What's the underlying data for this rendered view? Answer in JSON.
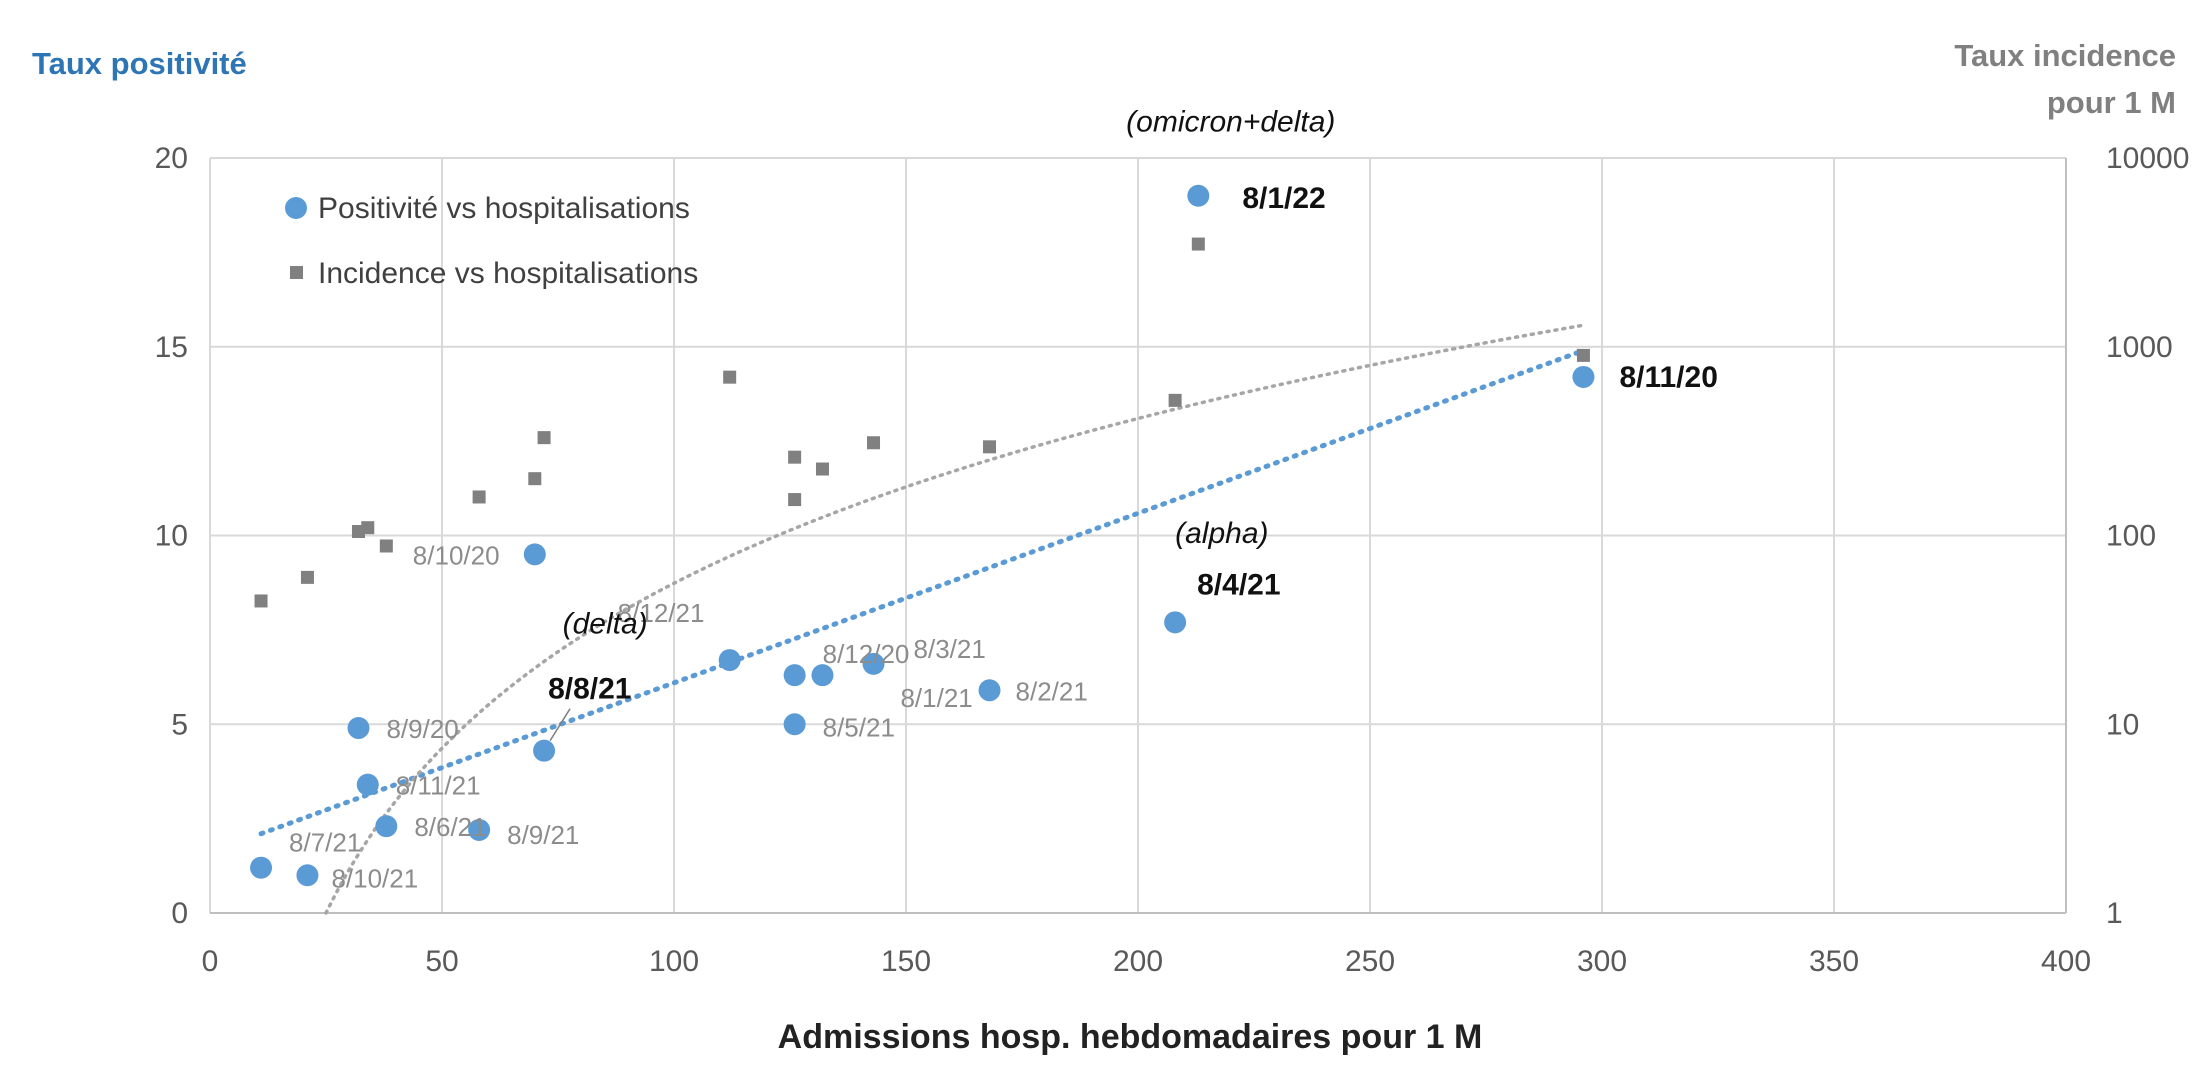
{
  "chart_data": {
    "type": "scatter",
    "title": "",
    "xlabel": "Admissions hosp. hebdomadaires pour 1 M",
    "ylabel": "Taux positivité",
    "y2label_line1": "Taux incidence",
    "y2label_line2": "pour 1 M",
    "xlim": [
      0,
      400
    ],
    "ylim": [
      0,
      20
    ],
    "y2lim": [
      1,
      10000
    ],
    "y2scale": "log",
    "grid": true,
    "legend_position": "top-left",
    "x_ticks": [
      "0",
      "50",
      "100",
      "150",
      "200",
      "250",
      "300",
      "350",
      "400"
    ],
    "y_ticks": [
      "0",
      "5",
      "10",
      "15",
      "20"
    ],
    "y2_ticks": [
      "1",
      "10",
      "100",
      "1000",
      "10000"
    ],
    "series": [
      {
        "name": "Positivité vs hospitalisations",
        "axis": "left",
        "color": "#5b9bd5",
        "marker": "circle",
        "points": [
          {
            "x": 11,
            "y": 1.2,
            "label": "8/7/21"
          },
          {
            "x": 21,
            "y": 1.0,
            "label": "8/10/21"
          },
          {
            "x": 32,
            "y": 4.9,
            "label": "8/9/20"
          },
          {
            "x": 34,
            "y": 3.4,
            "label": "8/11/21"
          },
          {
            "x": 38,
            "y": 2.3,
            "label": "8/6/21"
          },
          {
            "x": 58,
            "y": 2.2,
            "label": "8/9/21"
          },
          {
            "x": 70,
            "y": 9.5,
            "label": "8/10/20"
          },
          {
            "x": 72,
            "y": 4.3,
            "label": "8/8/21",
            "bold": true
          },
          {
            "x": 112,
            "y": 6.7,
            "label": "8/12/21"
          },
          {
            "x": 126,
            "y": 6.3,
            "label": "8/12/20"
          },
          {
            "x": 126,
            "y": 5.0,
            "label": "8/5/21"
          },
          {
            "x": 132,
            "y": 6.3,
            "label": "8/1/21"
          },
          {
            "x": 143,
            "y": 6.6,
            "label": "8/3/21"
          },
          {
            "x": 168,
            "y": 5.9,
            "label": "8/2/21"
          },
          {
            "x": 208,
            "y": 7.7,
            "label": "8/4/21",
            "bold": true
          },
          {
            "x": 213,
            "y": 19.0,
            "label": "8/1/22",
            "bold": true
          },
          {
            "x": 296,
            "y": 14.2,
            "label": "8/11/20",
            "bold": true
          }
        ]
      },
      {
        "name": "Incidence vs hospitalisations",
        "axis": "right",
        "color": "#808080",
        "marker": "square",
        "points": [
          {
            "x": 11,
            "y": 45
          },
          {
            "x": 21,
            "y": 60
          },
          {
            "x": 32,
            "y": 105
          },
          {
            "x": 34,
            "y": 110
          },
          {
            "x": 38,
            "y": 88
          },
          {
            "x": 58,
            "y": 160
          },
          {
            "x": 70,
            "y": 200
          },
          {
            "x": 72,
            "y": 330
          },
          {
            "x": 112,
            "y": 690
          },
          {
            "x": 126,
            "y": 260
          },
          {
            "x": 126,
            "y": 155
          },
          {
            "x": 132,
            "y": 225
          },
          {
            "x": 143,
            "y": 310
          },
          {
            "x": 168,
            "y": 295
          },
          {
            "x": 208,
            "y": 520
          },
          {
            "x": 213,
            "y": 3500
          },
          {
            "x": 296,
            "y": 900
          }
        ]
      }
    ],
    "trendlines": [
      {
        "series": "Positivité vs hospitalisations",
        "kind": "linear",
        "from": [
          11,
          2.1
        ],
        "to": [
          296,
          14.9
        ],
        "color": "#5b9bd5"
      },
      {
        "series": "Incidence vs hospitalisations",
        "kind": "log",
        "x_start": 25,
        "x_end": 296,
        "y_start": 1,
        "y_end": 1300,
        "color": "#a6a6a6"
      }
    ],
    "annotations": [
      {
        "text": "(omicron+delta)",
        "x": 220,
        "y": 20.7,
        "anchor": "middle"
      },
      {
        "text": "(alpha)",
        "x": 208,
        "y": 9.8,
        "anchor": "start"
      },
      {
        "text": "(delta)",
        "x": 76,
        "y": 7.4,
        "anchor": "start"
      }
    ]
  }
}
